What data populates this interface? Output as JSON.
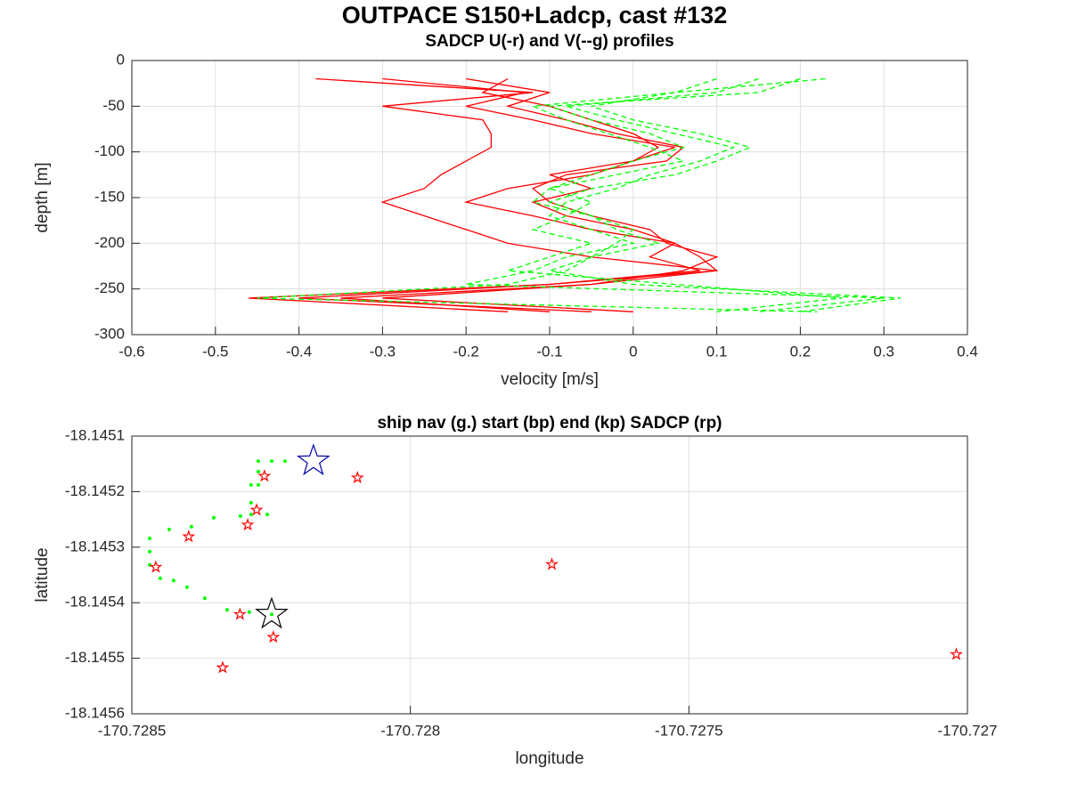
{
  "title": "OUTPACE S150+Ladcp, cast #132",
  "chart_data": [
    {
      "type": "line",
      "title": "SADCP U(-r) and V(--g) profiles",
      "xlabel": "velocity [m/s]",
      "ylabel": "depth [m]",
      "xlim": [
        -0.6,
        0.4
      ],
      "xticks": [
        -0.6,
        -0.5,
        -0.4,
        -0.3,
        -0.2,
        -0.1,
        0,
        0.1,
        0.2,
        0.3,
        0.4
      ],
      "ylim": [
        -300,
        0
      ],
      "yticks": [
        0,
        -50,
        -100,
        -150,
        -200,
        -250,
        -300
      ],
      "grid": true,
      "series": [
        {
          "color": "#ff0000",
          "dash": false,
          "x": [
            -0.38,
            -0.12,
            -0.3,
            -0.18,
            -0.17,
            -0.17,
            -0.2,
            -0.23,
            -0.25,
            -0.3,
            -0.25,
            -0.2,
            -0.15,
            -0.05,
            0.1,
            -0.05,
            -0.35,
            -0.1
          ],
          "values": [
            -20,
            -35,
            -50,
            -65,
            -80,
            -95,
            -110,
            -125,
            -140,
            -155,
            -170,
            -185,
            -200,
            -215,
            -230,
            -245,
            -260,
            -275
          ]
        },
        {
          "color": "#ff0000",
          "dash": false,
          "x": [
            -0.3,
            -0.13,
            -0.2,
            -0.12,
            -0.05,
            0.05,
            0.0,
            -0.05,
            -0.15,
            -0.2,
            -0.12,
            -0.05,
            0.05,
            0.08,
            0.1,
            -0.1,
            -0.4,
            -0.05
          ],
          "values": [
            -20,
            -35,
            -50,
            -65,
            -80,
            -95,
            -110,
            -125,
            -140,
            -155,
            -170,
            -185,
            -200,
            -215,
            -230,
            -245,
            -260,
            -275
          ]
        },
        {
          "color": "#ff0000",
          "dash": false,
          "x": [
            -0.2,
            -0.1,
            -0.15,
            -0.08,
            -0.02,
            0.06,
            0.04,
            -0.08,
            -0.12,
            -0.1,
            -0.05,
            0.02,
            0.04,
            0.1,
            0.06,
            -0.05,
            -0.3,
            0.0
          ],
          "values": [
            -20,
            -35,
            -50,
            -65,
            -80,
            -95,
            -110,
            -125,
            -140,
            -155,
            -170,
            -185,
            -200,
            -215,
            -230,
            -245,
            -260,
            -275
          ]
        },
        {
          "color": "#ff0000",
          "dash": false,
          "x": [
            -0.15,
            -0.18,
            -0.1,
            -0.05,
            0.0,
            0.03,
            0.0,
            -0.1,
            -0.05,
            -0.12,
            -0.08,
            0.0,
            0.05,
            0.02,
            0.08,
            -0.1,
            -0.46,
            -0.15
          ],
          "values": [
            -20,
            -35,
            -50,
            -65,
            -80,
            -95,
            -110,
            -125,
            -140,
            -155,
            -170,
            -185,
            -200,
            -215,
            -230,
            -245,
            -260,
            -275
          ]
        },
        {
          "color": "#00ff00",
          "dash": true,
          "x": [
            0.23,
            0.05,
            -0.05,
            0.0,
            0.08,
            0.14,
            0.1,
            0.05,
            -0.05,
            -0.1,
            -0.05,
            0.0,
            -0.02,
            -0.05,
            -0.1,
            0.0,
            0.32,
            0.2
          ],
          "values": [
            -20,
            -35,
            -50,
            -65,
            -80,
            -95,
            -110,
            -125,
            -140,
            -155,
            -170,
            -185,
            -200,
            -215,
            -230,
            -245,
            -260,
            -275
          ]
        },
        {
          "color": "#00ff00",
          "dash": true,
          "x": [
            0.2,
            0.15,
            -0.1,
            -0.05,
            0.02,
            0.06,
            0.0,
            -0.05,
            -0.1,
            -0.05,
            -0.08,
            -0.12,
            -0.05,
            -0.1,
            -0.15,
            0.05,
            0.25,
            0.1
          ],
          "values": [
            -20,
            -35,
            -50,
            -65,
            -80,
            -95,
            -110,
            -125,
            -140,
            -155,
            -170,
            -185,
            -200,
            -215,
            -230,
            -245,
            -260,
            -275
          ]
        },
        {
          "color": "#00ff00",
          "dash": true,
          "x": [
            0.15,
            0.1,
            -0.08,
            -0.02,
            0.05,
            0.12,
            0.08,
            0.02,
            -0.02,
            -0.08,
            -0.1,
            -0.05,
            0.0,
            -0.08,
            -0.12,
            -0.2,
            0.3,
            0.15
          ],
          "values": [
            -20,
            -35,
            -50,
            -65,
            -80,
            -95,
            -110,
            -125,
            -140,
            -155,
            -170,
            -185,
            -200,
            -215,
            -230,
            -245,
            -260,
            -275
          ]
        },
        {
          "color": "#00ff00",
          "dash": true,
          "x": [
            0.1,
            0.05,
            -0.12,
            -0.08,
            -0.03,
            0.02,
            0.06,
            -0.02,
            -0.1,
            -0.12,
            -0.05,
            -0.02,
            0.03,
            -0.05,
            -0.08,
            -0.15,
            -0.45,
            0.22
          ],
          "values": [
            -20,
            -35,
            -50,
            -65,
            -80,
            -95,
            -110,
            -125,
            -140,
            -155,
            -170,
            -185,
            -200,
            -215,
            -230,
            -245,
            -260,
            -275
          ]
        }
      ]
    },
    {
      "type": "scatter",
      "title": "ship nav (g.) start (bp) end (kp) SADCP (rp)",
      "xlabel": "longitude",
      "ylabel": "latitude",
      "xlim": [
        -170.7285,
        -170.727
      ],
      "xticks": [
        -170.7285,
        -170.728,
        -170.7275,
        -170.727
      ],
      "ylim": [
        -18.1456,
        -18.1451
      ],
      "yticks": [
        -18.1451,
        -18.1452,
        -18.1453,
        -18.1454,
        -18.1455,
        -18.1456
      ],
      "grid": true,
      "series": [
        {
          "color": "#00ff00",
          "marker": "dot",
          "markersize": 3,
          "x": [
            -170.728225,
            -170.728249,
            -170.728273,
            -170.728273,
            -170.728273,
            -170.728286,
            -170.728286,
            -170.728286,
            -170.728257,
            -170.728305,
            -170.728353,
            -170.728393,
            -170.728433,
            -170.728468,
            -170.728468,
            -170.728468,
            -170.728449,
            -170.728425,
            -170.728401,
            -170.728369,
            -170.728329,
            -170.728289,
            -170.728249
          ],
          "values": [
            -18.145145,
            -18.145145,
            -18.145145,
            -18.145164,
            -18.145188,
            -18.145188,
            -18.14522,
            -18.145241,
            -18.145241,
            -18.145244,
            -18.145247,
            -18.145263,
            -18.145268,
            -18.145284,
            -18.145308,
            -18.145332,
            -18.145356,
            -18.14536,
            -18.145372,
            -18.145392,
            -18.145413,
            -18.145417,
            -18.145421
          ]
        },
        {
          "color": "#ff0000",
          "marker": "star",
          "markersize": 6,
          "x": [
            -170.728457,
            -170.728398,
            -170.728337,
            -170.728306,
            -170.728292,
            -170.728276,
            -170.728262,
            -170.728246,
            -170.728095,
            -170.727746,
            -170.72702
          ],
          "values": [
            -18.145336,
            -18.145281,
            -18.145517,
            -18.145421,
            -18.14526,
            -18.145233,
            -18.145172,
            -18.145462,
            -18.145175,
            -18.145331,
            -18.145493
          ]
        },
        {
          "color": "#0000aa",
          "marker": "star",
          "markersize": 18,
          "x": [
            -170.728174
          ],
          "values": [
            -18.145145
          ]
        },
        {
          "color": "#000000",
          "marker": "star",
          "markersize": 18,
          "x": [
            -170.728249
          ],
          "values": [
            -18.145421
          ]
        }
      ]
    }
  ]
}
